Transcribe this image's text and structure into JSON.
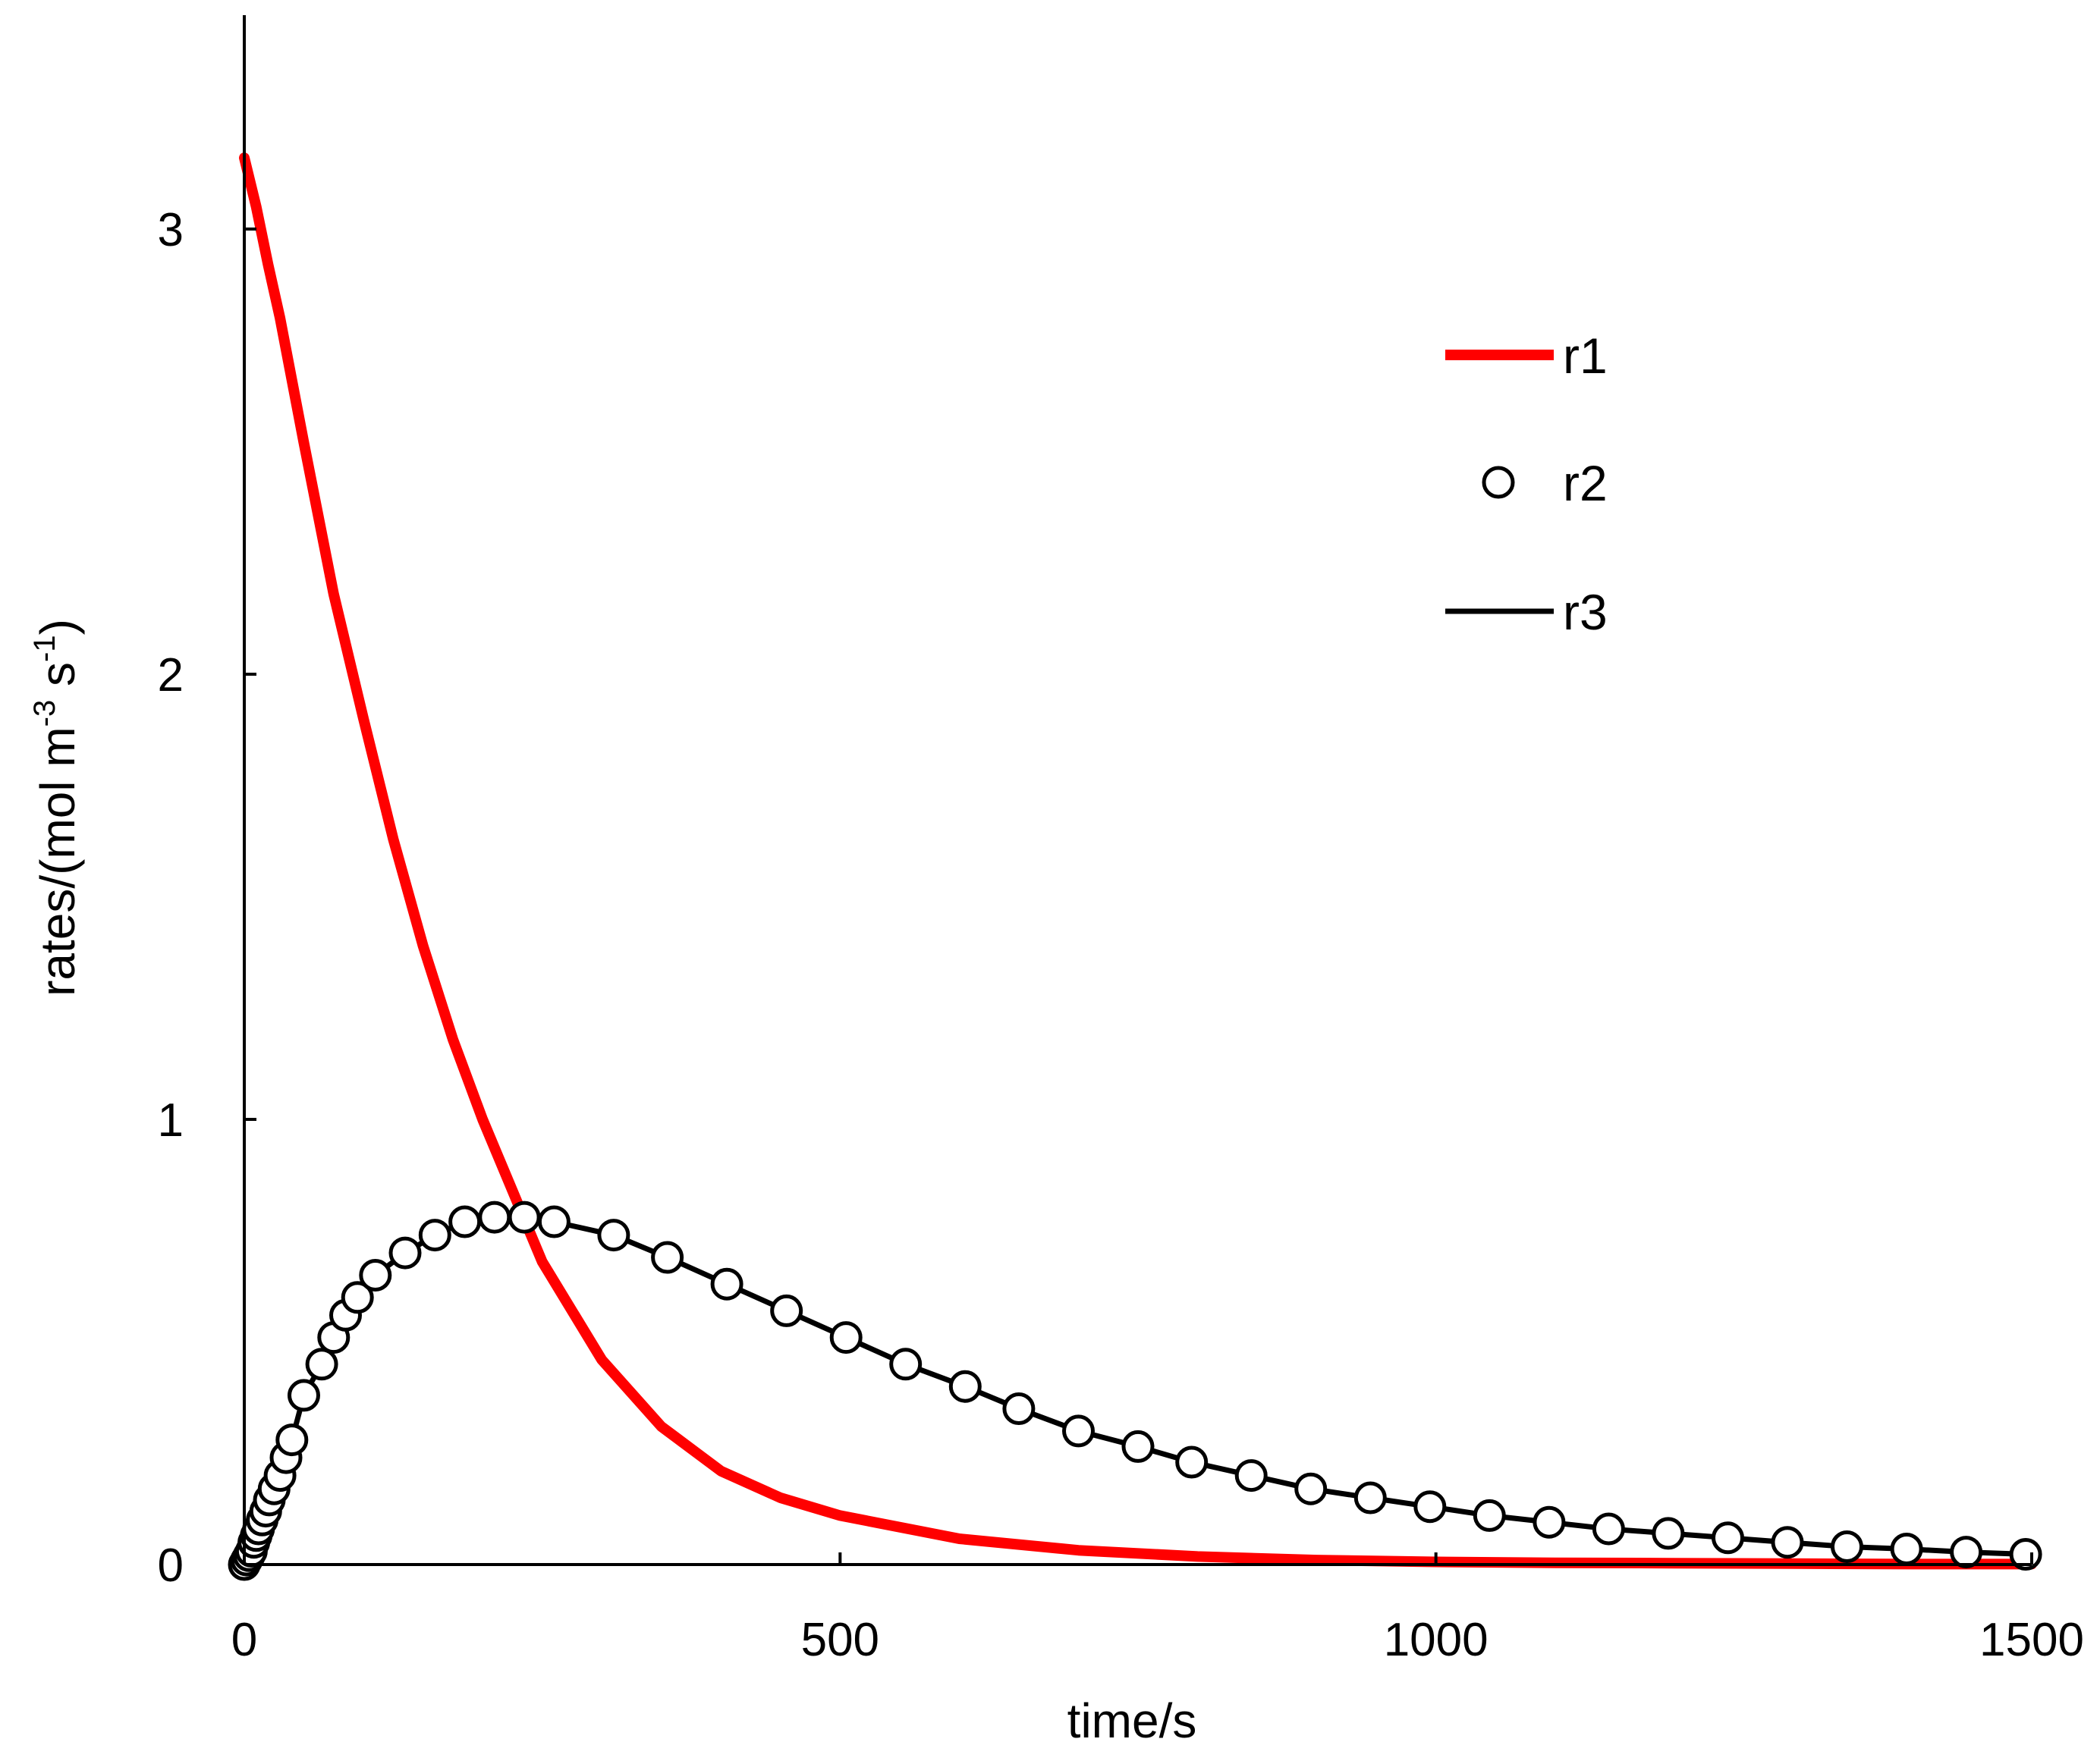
{
  "chart_data": {
    "type": "line",
    "title": "",
    "xlabel": "time/s",
    "ylabel": {
      "parts": [
        "rates/(mol m",
        "-3",
        " s",
        "-1",
        ")"
      ],
      "text": "rates/(mol m-3 s-1)"
    },
    "xlim": [
      0,
      1500
    ],
    "ylim": [
      0,
      3.5
    ],
    "xticks": [
      0,
      500,
      1000,
      1500
    ],
    "yticks": [
      0,
      1,
      2,
      3
    ],
    "xtick_labels": [
      "0",
      "500",
      "1000",
      "1500"
    ],
    "ytick_labels": [
      "0",
      "1",
      "2",
      "3"
    ],
    "grid": false,
    "legend_position": "top-right",
    "colors": {
      "r1": "#ff0000",
      "r2": "#000000",
      "r3": "#000000",
      "axis": "#000000"
    },
    "series": [
      {
        "name": "r1",
        "style": "thick-line",
        "x": [
          0,
          10,
          20,
          30,
          50,
          75,
          100,
          125,
          150,
          175,
          200,
          250,
          300,
          350,
          400,
          450,
          500,
          600,
          700,
          800,
          900,
          1000,
          1100,
          1200,
          1300,
          1400,
          1500
        ],
        "y": [
          3.16,
          3.05,
          2.92,
          2.8,
          2.52,
          2.18,
          1.9,
          1.63,
          1.39,
          1.18,
          1.0,
          0.68,
          0.46,
          0.31,
          0.21,
          0.15,
          0.11,
          0.058,
          0.032,
          0.018,
          0.01,
          0.006,
          0.004,
          0.003,
          0.002,
          0.001,
          0.001
        ]
      },
      {
        "name": "r2",
        "style": "open-circles",
        "x": [
          0,
          2,
          4,
          6,
          8,
          10,
          12,
          15,
          18,
          21,
          25,
          30,
          35,
          40,
          50,
          65,
          75,
          85,
          95,
          110,
          135,
          160,
          185,
          210,
          235,
          260,
          310,
          355,
          405,
          455,
          505,
          555,
          605,
          650,
          700,
          750,
          795,
          845,
          895,
          945,
          995,
          1045,
          1095,
          1145,
          1195,
          1245,
          1295,
          1345,
          1395,
          1445,
          1495
        ],
        "y": [
          0.0,
          0.01,
          0.02,
          0.03,
          0.05,
          0.065,
          0.08,
          0.1,
          0.12,
          0.145,
          0.17,
          0.2,
          0.24,
          0.28,
          0.38,
          0.45,
          0.51,
          0.56,
          0.6,
          0.65,
          0.7,
          0.74,
          0.77,
          0.78,
          0.78,
          0.77,
          0.74,
          0.69,
          0.63,
          0.57,
          0.51,
          0.45,
          0.4,
          0.35,
          0.3,
          0.265,
          0.23,
          0.2,
          0.17,
          0.15,
          0.13,
          0.11,
          0.095,
          0.08,
          0.07,
          0.06,
          0.05,
          0.04,
          0.035,
          0.028,
          0.023
        ]
      },
      {
        "name": "r3",
        "style": "thin-line",
        "x": [
          0,
          5,
          10,
          15,
          20,
          30,
          40,
          50,
          65,
          75,
          85,
          95,
          110,
          135,
          160,
          185,
          210,
          235,
          260,
          310,
          355,
          405,
          455,
          505,
          555,
          605,
          650,
          700,
          750,
          795,
          845,
          895,
          945,
          995,
          1045,
          1095,
          1145,
          1195,
          1245,
          1295,
          1345,
          1395,
          1445,
          1495,
          1500
        ],
        "y": [
          0.0,
          0.025,
          0.065,
          0.1,
          0.13,
          0.2,
          0.28,
          0.38,
          0.45,
          0.51,
          0.56,
          0.6,
          0.65,
          0.7,
          0.74,
          0.77,
          0.78,
          0.78,
          0.77,
          0.74,
          0.69,
          0.63,
          0.57,
          0.51,
          0.45,
          0.4,
          0.35,
          0.3,
          0.265,
          0.23,
          0.2,
          0.17,
          0.15,
          0.13,
          0.11,
          0.095,
          0.08,
          0.07,
          0.06,
          0.05,
          0.04,
          0.035,
          0.028,
          0.023,
          0.022
        ]
      }
    ]
  }
}
